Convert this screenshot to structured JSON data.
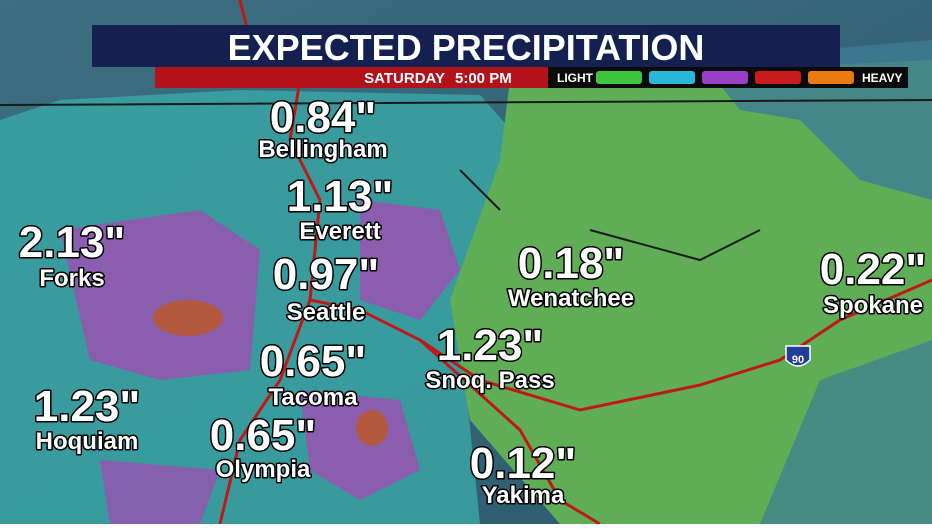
{
  "header": {
    "title": "EXPECTED PRECIPITATION",
    "day": "SATURDAY",
    "time": "5:00 PM"
  },
  "legend": {
    "low": "LIGHT",
    "high": "HEAVY",
    "colors": [
      "#3ec43e",
      "#2ab8d8",
      "#9a40c8",
      "#c81c1c",
      "#e87a10"
    ]
  },
  "cities": [
    {
      "amount": "0.84\"",
      "name": "Bellingham"
    },
    {
      "amount": "1.13\"",
      "name": "Everett"
    },
    {
      "amount": "2.13\"",
      "name": "Forks"
    },
    {
      "amount": "0.97\"",
      "name": "Seattle"
    },
    {
      "amount": "0.18\"",
      "name": "Wenatchee"
    },
    {
      "amount": "0.22\"",
      "name": "Spokane"
    },
    {
      "amount": "1.23\"",
      "name": "Snoq. Pass"
    },
    {
      "amount": "0.65\"",
      "name": "Tacoma"
    },
    {
      "amount": "1.23\"",
      "name": "Hoquiam"
    },
    {
      "amount": "0.65\"",
      "name": "Olympia"
    },
    {
      "amount": "0.12\"",
      "name": "Yakima"
    }
  ],
  "highway": "90"
}
